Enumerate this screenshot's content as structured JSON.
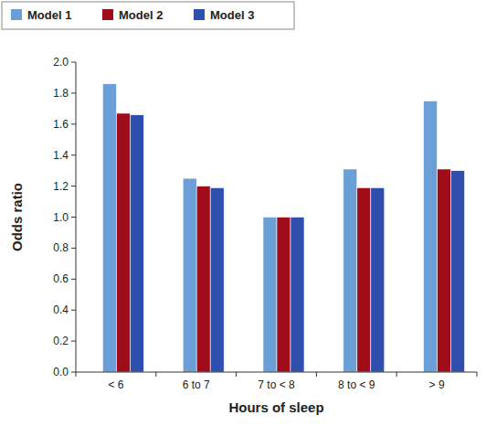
{
  "chart_data": {
    "type": "bar",
    "x_label": "Hours of sleep",
    "y_label": "Odds ratio",
    "categories": [
      "< 6",
      "6 to 7",
      "7 to < 8",
      "8 to < 9",
      "> 9"
    ],
    "series": [
      {
        "name": "Model 1",
        "color": "#6a9fd8",
        "values": [
          1.86,
          1.25,
          1.0,
          1.31,
          1.75
        ]
      },
      {
        "name": "Model 2",
        "color": "#a00d1a",
        "values": [
          1.67,
          1.2,
          1.0,
          1.19,
          1.31
        ]
      },
      {
        "name": "Model 3",
        "color": "#2f4fae",
        "values": [
          1.66,
          1.19,
          1.0,
          1.19,
          1.3
        ]
      }
    ],
    "ylim": [
      0,
      2
    ],
    "yticks": [
      {
        "value": 0,
        "label": "0.0"
      },
      0.2,
      0.4,
      0.6,
      0.8,
      {
        "value": 1,
        "label": "1.0"
      },
      1.2,
      1.4,
      1.6,
      1.8,
      {
        "value": 2,
        "label": "2.0"
      }
    ],
    "grid": false,
    "legend": "top-left"
  }
}
